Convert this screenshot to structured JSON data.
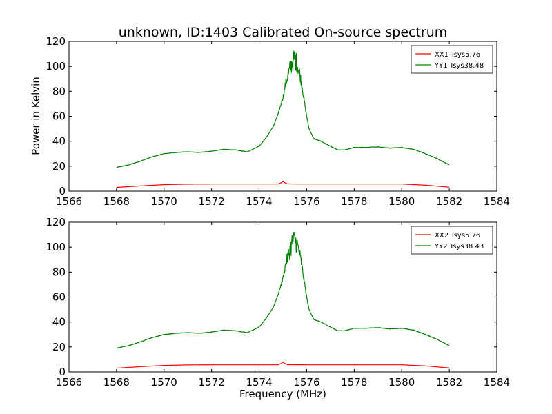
{
  "chart_data": {
    "type": "line",
    "title": "unknown, ID:1403 Calibrated On-source spectrum",
    "xlabel": "Frequency (MHz)",
    "ylabel": "Power in Kelvin",
    "xlim": [
      1566,
      1584
    ],
    "ylim": [
      0,
      120
    ],
    "xticks": [
      "1566",
      "1568",
      "1570",
      "1572",
      "1574",
      "1576",
      "1578",
      "1580",
      "1582",
      "1584"
    ],
    "yticks": [
      "0",
      "20",
      "40",
      "60",
      "80",
      "100",
      "120"
    ],
    "legend_position": "top-right",
    "panels": [
      {
        "name": "top",
        "series": [
          {
            "name": "XX1 Tsys5.76",
            "color": "#ff0000",
            "points": [
              [
                1568.0,
                3.0
              ],
              [
                1569.0,
                4.2
              ],
              [
                1570.0,
                5.2
              ],
              [
                1571.0,
                5.6
              ],
              [
                1572.0,
                5.7
              ],
              [
                1573.0,
                5.7
              ],
              [
                1574.0,
                5.7
              ],
              [
                1574.8,
                5.7
              ],
              [
                1574.95,
                7.0
              ],
              [
                1575.0,
                8.0
              ],
              [
                1575.05,
                7.0
              ],
              [
                1575.2,
                5.8
              ],
              [
                1576.0,
                5.7
              ],
              [
                1577.0,
                5.7
              ],
              [
                1578.0,
                5.7
              ],
              [
                1579.0,
                5.7
              ],
              [
                1580.0,
                5.7
              ],
              [
                1581.0,
                4.8
              ],
              [
                1582.0,
                3.2
              ]
            ]
          },
          {
            "name": "YY1 Tsys38.48",
            "color": "#008000",
            "points": [
              [
                1568.0,
                19.0
              ],
              [
                1568.5,
                21.0
              ],
              [
                1569.0,
                24.0
              ],
              [
                1569.5,
                27.5
              ],
              [
                1570.0,
                30.0
              ],
              [
                1570.5,
                31.0
              ],
              [
                1571.0,
                31.5
              ],
              [
                1571.5,
                31.0
              ],
              [
                1572.0,
                32.0
              ],
              [
                1572.5,
                33.5
              ],
              [
                1573.0,
                33.0
              ],
              [
                1573.5,
                31.5
              ],
              [
                1574.0,
                36.0
              ],
              [
                1574.3,
                43.0
              ],
              [
                1574.6,
                52.0
              ],
              [
                1574.8,
                62.0
              ],
              [
                1575.0,
                75.0
              ],
              [
                1575.1,
                85.0
              ],
              [
                1575.2,
                92.0
              ],
              [
                1575.3,
                98.0
              ],
              [
                1575.4,
                104.0
              ],
              [
                1575.5,
                106.0
              ],
              [
                1575.6,
                102.0
              ],
              [
                1575.7,
                95.0
              ],
              [
                1575.8,
                85.0
              ],
              [
                1575.9,
                72.0
              ],
              [
                1576.0,
                60.0
              ],
              [
                1576.1,
                50.0
              ],
              [
                1576.3,
                42.0
              ],
              [
                1576.6,
                40.0
              ],
              [
                1577.0,
                36.0
              ],
              [
                1577.3,
                33.0
              ],
              [
                1577.6,
                33.0
              ],
              [
                1578.0,
                35.0
              ],
              [
                1578.5,
                35.0
              ],
              [
                1579.0,
                35.5
              ],
              [
                1579.5,
                34.5
              ],
              [
                1580.0,
                35.0
              ],
              [
                1580.5,
                33.5
              ],
              [
                1581.0,
                30.0
              ],
              [
                1581.5,
                26.0
              ],
              [
                1582.0,
                21.0
              ]
            ]
          }
        ]
      },
      {
        "name": "bottom",
        "series": [
          {
            "name": "XX2 Tsys5.76",
            "color": "#ff0000",
            "points": [
              [
                1568.0,
                3.0
              ],
              [
                1569.0,
                4.2
              ],
              [
                1570.0,
                5.2
              ],
              [
                1571.0,
                5.6
              ],
              [
                1572.0,
                5.7
              ],
              [
                1573.0,
                5.7
              ],
              [
                1574.0,
                5.7
              ],
              [
                1574.8,
                5.7
              ],
              [
                1574.95,
                7.0
              ],
              [
                1575.0,
                8.0
              ],
              [
                1575.05,
                7.0
              ],
              [
                1575.2,
                5.8
              ],
              [
                1576.0,
                5.7
              ],
              [
                1577.0,
                5.7
              ],
              [
                1578.0,
                5.7
              ],
              [
                1579.0,
                5.7
              ],
              [
                1580.0,
                5.7
              ],
              [
                1581.0,
                4.8
              ],
              [
                1582.0,
                3.2
              ]
            ]
          },
          {
            "name": "YY2 Tsys38.43",
            "color": "#008000",
            "points": [
              [
                1568.0,
                19.0
              ],
              [
                1568.5,
                21.0
              ],
              [
                1569.0,
                24.0
              ],
              [
                1569.5,
                27.5
              ],
              [
                1570.0,
                30.0
              ],
              [
                1570.5,
                31.0
              ],
              [
                1571.0,
                31.5
              ],
              [
                1571.5,
                31.0
              ],
              [
                1572.0,
                32.0
              ],
              [
                1572.5,
                33.5
              ],
              [
                1573.0,
                33.0
              ],
              [
                1573.5,
                31.5
              ],
              [
                1574.0,
                36.0
              ],
              [
                1574.3,
                43.0
              ],
              [
                1574.6,
                52.0
              ],
              [
                1574.8,
                62.0
              ],
              [
                1575.0,
                75.0
              ],
              [
                1575.1,
                85.0
              ],
              [
                1575.2,
                92.0
              ],
              [
                1575.3,
                98.0
              ],
              [
                1575.4,
                104.0
              ],
              [
                1575.5,
                106.0
              ],
              [
                1575.6,
                102.0
              ],
              [
                1575.7,
                95.0
              ],
              [
                1575.8,
                85.0
              ],
              [
                1575.9,
                72.0
              ],
              [
                1576.0,
                60.0
              ],
              [
                1576.1,
                50.0
              ],
              [
                1576.3,
                42.0
              ],
              [
                1576.6,
                40.0
              ],
              [
                1577.0,
                36.0
              ],
              [
                1577.3,
                33.0
              ],
              [
                1577.6,
                33.0
              ],
              [
                1578.0,
                35.0
              ],
              [
                1578.5,
                35.0
              ],
              [
                1579.0,
                35.5
              ],
              [
                1579.5,
                34.5
              ],
              [
                1580.0,
                35.0
              ],
              [
                1580.5,
                33.5
              ],
              [
                1581.0,
                30.0
              ],
              [
                1581.5,
                26.0
              ],
              [
                1582.0,
                21.0
              ]
            ]
          }
        ]
      }
    ]
  }
}
